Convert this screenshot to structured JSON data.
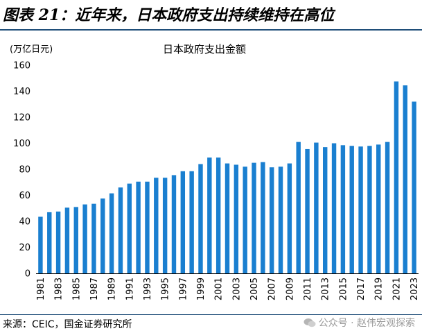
{
  "figure_title": "图表 21：近年来，日本政府支出持续维持在高位",
  "source": "来源：CEIC，国金证券研究所",
  "watermark": "公众号 · 赵伟宏观探索",
  "colors": {
    "bar": "#1a7fd0",
    "rule": "#1f4e79"
  },
  "chart_data": {
    "type": "bar",
    "title": "日本政府支出金额",
    "ylabel": "(万亿日元)",
    "xlabel": "",
    "ylim": [
      0,
      160
    ],
    "yticks": [
      0,
      20,
      40,
      60,
      80,
      100,
      120,
      140,
      160
    ],
    "grid": false,
    "legend": "none",
    "categories": [
      "1981",
      "1982",
      "1983",
      "1984",
      "1985",
      "1986",
      "1987",
      "1988",
      "1989",
      "1990",
      "1991",
      "1992",
      "1993",
      "1994",
      "1995",
      "1996",
      "1997",
      "1998",
      "1999",
      "2000",
      "2001",
      "2002",
      "2003",
      "2004",
      "2005",
      "2006",
      "2007",
      "2008",
      "2009",
      "2010",
      "2011",
      "2012",
      "2013",
      "2014",
      "2015",
      "2016",
      "2017",
      "2018",
      "2019",
      "2020",
      "2021",
      "2022",
      "2023"
    ],
    "tick_labels": [
      "1981",
      "1983",
      "1985",
      "1987",
      "1989",
      "1991",
      "1993",
      "1995",
      "1997",
      "1999",
      "2001",
      "2003",
      "2005",
      "2007",
      "2009",
      "2011",
      "2013",
      "2015",
      "2017",
      "2019",
      "2021",
      "2023"
    ],
    "values": [
      43.5,
      47,
      47.5,
      50.5,
      51,
      53,
      53.5,
      57.5,
      61.5,
      66,
      69,
      70.5,
      70.5,
      73.5,
      73.5,
      75.5,
      78.5,
      78.5,
      84,
      89,
      89,
      84.5,
      83.5,
      82,
      85,
      85.5,
      81.5,
      82,
      84.5,
      101,
      95.5,
      100.5,
      97,
      100,
      98.5,
      98,
      97.5,
      98,
      99,
      101,
      147.5,
      144.5,
      132
    ]
  }
}
